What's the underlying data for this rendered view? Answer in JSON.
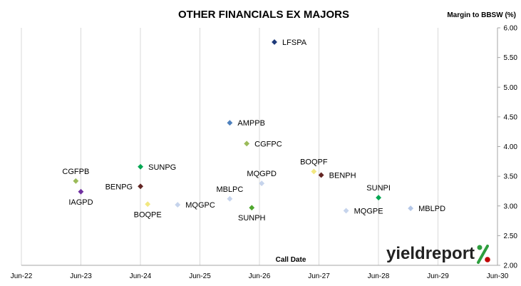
{
  "chart_data": {
    "type": "scatter",
    "title": "OTHER FINANCIALS EX MAJORS",
    "ylabel": "Margin to BBSW (%)",
    "xlabel": "Call Date",
    "ylim": [
      2.0,
      6.0
    ],
    "xlim": [
      "2022-06-01",
      "2030-06-01"
    ],
    "yticks": [
      "2.00",
      "2.50",
      "3.00",
      "3.50",
      "4.00",
      "4.50",
      "5.00",
      "5.50",
      "6.00"
    ],
    "xticks": [
      "Jun-22",
      "Jun-23",
      "Jun-24",
      "Jun-25",
      "Jun-26",
      "Jun-27",
      "Jun-28",
      "Jun-29",
      "Jun-30"
    ],
    "grid": "vertical",
    "points": [
      {
        "name": "LFSPA",
        "x": "2026-09-01",
        "y": 5.76,
        "color": "#1f3a7a"
      },
      {
        "name": "AMPPB",
        "x": "2025-12-01",
        "y": 4.4,
        "color": "#4f81bd"
      },
      {
        "name": "CGFPC",
        "x": "2026-03-15",
        "y": 4.05,
        "color": "#9bbb59"
      },
      {
        "name": "BOQPF",
        "x": "2027-05-01",
        "y": 3.58,
        "color": "#f2e880"
      },
      {
        "name": "BENPH",
        "x": "2027-06-15",
        "y": 3.52,
        "color": "#632523"
      },
      {
        "name": "MQGPD",
        "x": "2026-06-15",
        "y": 3.38,
        "color": "#c6d4ec"
      },
      {
        "name": "SUNPG",
        "x": "2024-06-01",
        "y": 3.66,
        "color": "#00a651"
      },
      {
        "name": "CGFPB",
        "x": "2023-05-01",
        "y": 3.42,
        "color": "#9bbb59"
      },
      {
        "name": "IAGPD",
        "x": "2023-06-01",
        "y": 3.24,
        "color": "#7030a0"
      },
      {
        "name": "BENPG",
        "x": "2024-06-01",
        "y": 3.33,
        "color": "#632523"
      },
      {
        "name": "BOQPE",
        "x": "2024-07-15",
        "y": 3.03,
        "color": "#f2e880"
      },
      {
        "name": "MQGPC",
        "x": "2025-01-15",
        "y": 3.02,
        "color": "#c6d4ec"
      },
      {
        "name": "MBLPC",
        "x": "2025-12-01",
        "y": 3.12,
        "color": "#c6d4ec"
      },
      {
        "name": "SUNPH",
        "x": "2026-04-15",
        "y": 2.97,
        "color": "#4ea72e"
      },
      {
        "name": "SUNPI",
        "x": "2028-06-01",
        "y": 3.14,
        "color": "#00a651"
      },
      {
        "name": "MQGPE",
        "x": "2027-11-15",
        "y": 2.92,
        "color": "#c6d4ec"
      },
      {
        "name": "MBLPD",
        "x": "2028-12-15",
        "y": 2.96,
        "color": "#b4c7e7"
      }
    ],
    "label_side": {
      "LFSPA": "right",
      "AMPPB": "right",
      "CGFPC": "right",
      "BOQPF": "above",
      "BENPH": "right",
      "MQGPD": "above",
      "SUNPG": "right",
      "CGFPB": "above",
      "IAGPD": "below",
      "BENPG": "left",
      "BOQPE": "below",
      "MQGPC": "right",
      "MBLPC": "above",
      "SUNPH": "below",
      "SUNPI": "above",
      "MQGPE": "right",
      "MBLPD": "right"
    }
  },
  "logo": {
    "text": "yieldreport"
  }
}
